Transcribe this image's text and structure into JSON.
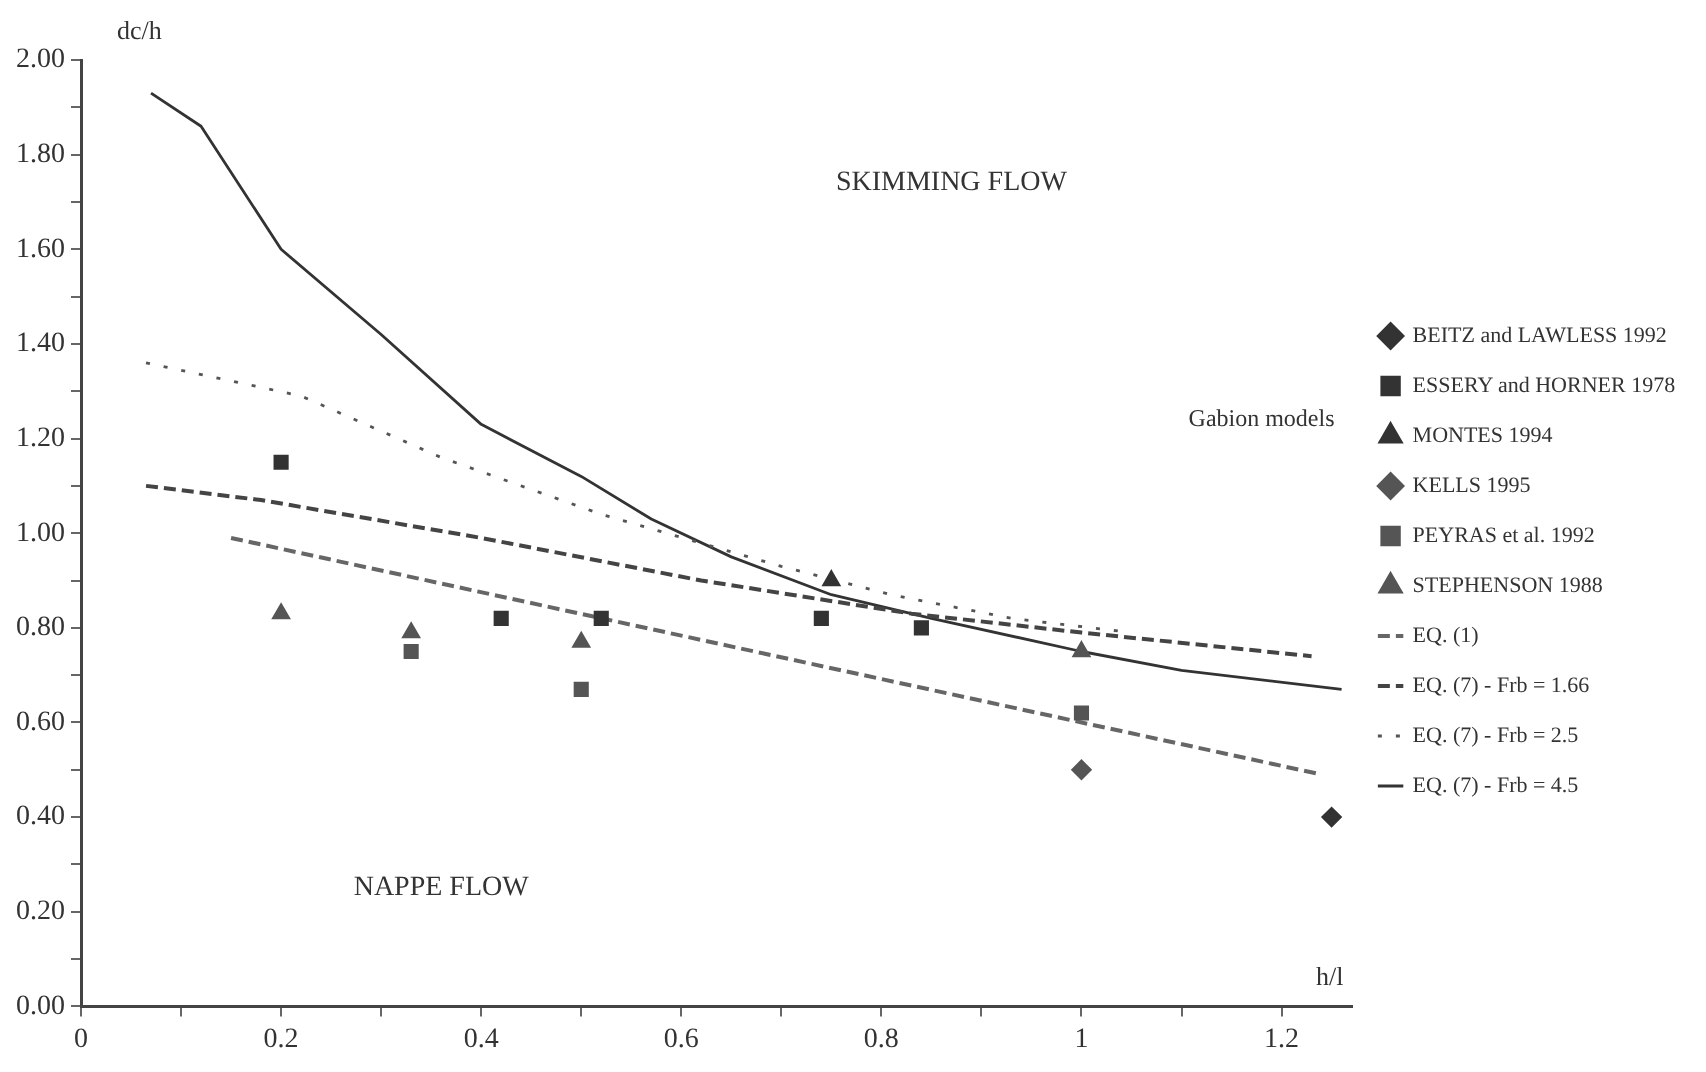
{
  "chart_data": {
    "type": "scatter",
    "xlabel": "h/l",
    "ylabel": "dc/h",
    "annotations": [
      "SKIMMING FLOW",
      "NAPPE FLOW",
      "Gabion models"
    ],
    "xlim": [
      0,
      1.27
    ],
    "ylim": [
      0,
      2
    ],
    "xticks": [
      0,
      {
        "value": 0.1,
        "label": null
      },
      0.2,
      {
        "value": 0.3,
        "label": null
      },
      0.4,
      {
        "value": 0.5,
        "label": null
      },
      0.6,
      {
        "value": 0.7,
        "label": null
      },
      0.8,
      {
        "value": 0.9,
        "label": null
      },
      1,
      {
        "value": 1.1,
        "label": null
      },
      1.2
    ],
    "yticks": [
      {
        "value": 0,
        "label": "0.00"
      },
      {
        "value": 0.1,
        "label": null
      },
      {
        "value": 0.2,
        "label": "0.20"
      },
      {
        "value": 0.3,
        "label": null
      },
      {
        "value": 0.4,
        "label": "0.40"
      },
      {
        "value": 0.5,
        "label": null
      },
      {
        "value": 0.6,
        "label": "0.60"
      },
      {
        "value": 0.7,
        "label": null
      },
      {
        "value": 0.8,
        "label": "0.80"
      },
      {
        "value": 0.9,
        "label": null
      },
      {
        "value": 1,
        "label": "1.00"
      },
      {
        "value": 1.1,
        "label": null
      },
      {
        "value": 1.2,
        "label": "1.20"
      },
      {
        "value": 1.3,
        "label": null
      },
      {
        "value": 1.4,
        "label": "1.40"
      },
      {
        "value": 1.5,
        "label": null
      },
      {
        "value": 1.6,
        "label": "1.60"
      },
      {
        "value": 1.7,
        "label": null
      },
      {
        "value": 1.8,
        "label": "1.80"
      },
      {
        "value": 1.9,
        "label": null
      },
      {
        "value": 2,
        "label": "2.00"
      }
    ],
    "grid": false,
    "legend": "right",
    "series": [
      {
        "name": "BEITZ and LAWLESS 1992",
        "type": "scatter",
        "marker": "diamond",
        "color": "#333333",
        "x": [
          1.25
        ],
        "values": [
          0.4
        ]
      },
      {
        "name": "ESSERY and HORNER 1978",
        "type": "scatter",
        "marker": "square",
        "color": "#333333",
        "x": [
          0.2,
          0.42,
          0.52,
          0.74,
          0.84
        ],
        "values": [
          1.15,
          0.82,
          0.82,
          0.82,
          0.8
        ]
      },
      {
        "name": "MONTES 1994",
        "type": "scatter",
        "marker": "triangle",
        "color": "#333333",
        "x": [
          0.75
        ],
        "values": [
          0.9
        ]
      },
      {
        "name": "KELLS 1995",
        "type": "scatter",
        "marker": "diamond",
        "color": "#555555",
        "x": [
          1.0
        ],
        "values": [
          0.5
        ]
      },
      {
        "name": "PEYRAS et al. 1992",
        "type": "scatter",
        "marker": "square",
        "color": "#555555",
        "x": [
          0.33,
          0.5,
          1.0
        ],
        "values": [
          0.75,
          0.67,
          0.62
        ]
      },
      {
        "name": "STEPHENSON 1988",
        "type": "scatter",
        "marker": "triangle",
        "color": "#555555",
        "x": [
          0.2,
          0.33,
          0.5,
          1.0
        ],
        "values": [
          0.83,
          0.79,
          0.77,
          0.75
        ]
      },
      {
        "name": "EQ. (1)",
        "type": "line",
        "line_style": "dashed",
        "marker": "none",
        "color": "#666666",
        "x": [
          0.15,
          1.24
        ],
        "values": [
          0.99,
          0.49
        ]
      },
      {
        "name": "EQ. (7) - Frb = 1.66",
        "type": "line",
        "line_style": "dashed",
        "marker": "none",
        "color": "#444444",
        "x": [
          0.065,
          0.18,
          0.4,
          0.62,
          0.83,
          1.0,
          1.23
        ],
        "values": [
          1.1,
          1.07,
          0.99,
          0.9,
          0.83,
          0.79,
          0.74
        ]
      },
      {
        "name": "EQ. (7) - Frb = 2.5",
        "type": "line",
        "line_style": "dotted",
        "marker": "none",
        "color": "#555555",
        "x": [
          0.065,
          0.22,
          0.36,
          0.52,
          0.7,
          0.81,
          0.93,
          1.05
        ],
        "values": [
          1.36,
          1.29,
          1.16,
          1.04,
          0.93,
          0.87,
          0.82,
          0.79
        ]
      },
      {
        "name": "EQ. (7) - Frb = 4.5",
        "type": "line",
        "line_style": "solid",
        "marker": "none",
        "color": "#333333",
        "x": [
          0.07,
          0.12,
          0.2,
          0.3,
          0.4,
          0.5,
          0.57,
          0.65,
          0.75,
          0.85,
          1.0,
          1.1,
          1.26
        ],
        "values": [
          1.93,
          1.86,
          1.6,
          1.42,
          1.23,
          1.12,
          1.03,
          0.95,
          0.87,
          0.82,
          0.75,
          0.71,
          0.67
        ]
      }
    ]
  }
}
